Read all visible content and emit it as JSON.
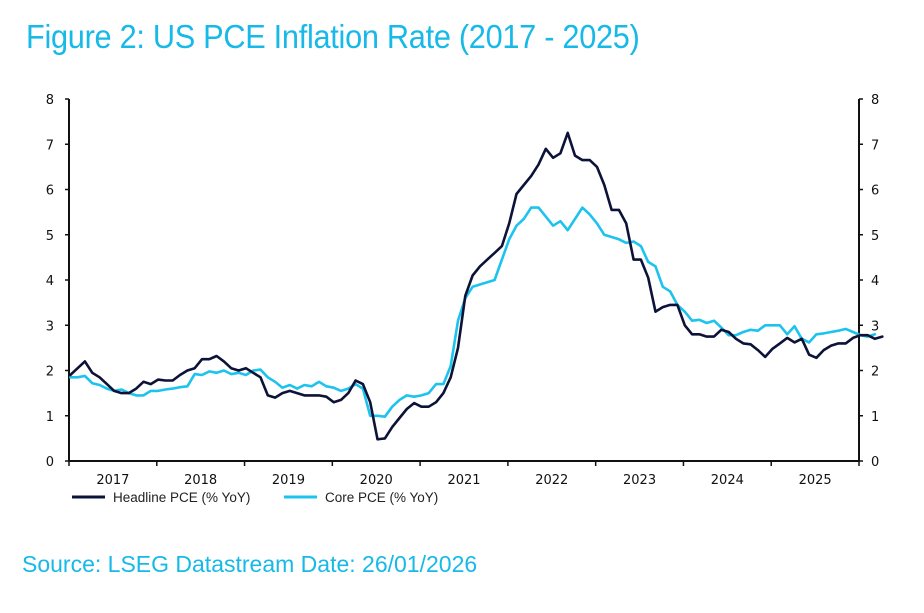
{
  "figure": {
    "title": "Figure 2: US PCE Inflation Rate (2017 - 2025)",
    "source": "Source: LSEG Datastream Date: 26/01/2026"
  },
  "chart_data": {
    "type": "line",
    "title": "Figure 2: US PCE Inflation Rate (2017 - 2025)",
    "xlabel": "",
    "ylabel": "",
    "ylim": [
      0,
      8
    ],
    "yticks": [
      0,
      1,
      2,
      3,
      4,
      5,
      6,
      7,
      8
    ],
    "ytick_labels": [
      "0",
      "1",
      "2",
      "3",
      "4",
      "5",
      "6",
      "7",
      "8"
    ],
    "y_axes": [
      "left",
      "right"
    ],
    "xlim": [
      2017.0,
      2026.0
    ],
    "xtick_labels": [
      "2017",
      "2018",
      "2019",
      "2020",
      "2021",
      "2022",
      "2023",
      "2024",
      "2025"
    ],
    "grid": false,
    "legend_position": "bottom-left",
    "x_start": "2017-01",
    "frequency": "monthly",
    "colors": {
      "headline": "#0d1238",
      "core": "#1cc3ee",
      "axis": "#111111",
      "title": "#16b9e8"
    },
    "series": [
      {
        "name": "Headline PCE (% YoY)",
        "key": "headline",
        "values": [
          1.9,
          2.05,
          2.2,
          1.95,
          1.85,
          1.7,
          1.55,
          1.5,
          1.5,
          1.6,
          1.75,
          1.7,
          1.8,
          1.78,
          1.78,
          1.9,
          2.0,
          2.05,
          2.25,
          2.25,
          2.32,
          2.2,
          2.05,
          2.0,
          2.05,
          1.95,
          1.85,
          1.45,
          1.4,
          1.5,
          1.55,
          1.5,
          1.45,
          1.45,
          1.45,
          1.42,
          1.3,
          1.35,
          1.5,
          1.78,
          1.7,
          1.3,
          0.48,
          0.5,
          0.75,
          0.95,
          1.15,
          1.28,
          1.2,
          1.2,
          1.3,
          1.5,
          1.85,
          2.5,
          3.65,
          4.1,
          4.3,
          4.45,
          4.6,
          4.75,
          5.25,
          5.9,
          6.1,
          6.3,
          6.55,
          6.9,
          6.7,
          6.8,
          7.25,
          6.75,
          6.65,
          6.65,
          6.5,
          6.1,
          5.55,
          5.55,
          5.25,
          4.45,
          4.45,
          4.05,
          3.3,
          3.4,
          3.45,
          3.45,
          3.0,
          2.8,
          2.8,
          2.75,
          2.75,
          2.9,
          2.85,
          2.7,
          2.6,
          2.58,
          2.45,
          2.3,
          2.48,
          2.6,
          2.72,
          2.62,
          2.7,
          2.35,
          2.28,
          2.45,
          2.55,
          2.6,
          2.6,
          2.72,
          2.78,
          2.78,
          2.7,
          2.75
        ]
      },
      {
        "name": "Core PCE (% YoY)",
        "key": "core",
        "values": [
          1.85,
          1.85,
          1.88,
          1.72,
          1.68,
          1.6,
          1.55,
          1.58,
          1.5,
          1.45,
          1.45,
          1.55,
          1.55,
          1.58,
          1.6,
          1.63,
          1.65,
          1.92,
          1.9,
          1.98,
          1.95,
          2.0,
          1.92,
          1.95,
          1.9,
          2.0,
          2.02,
          1.85,
          1.75,
          1.62,
          1.68,
          1.6,
          1.68,
          1.65,
          1.75,
          1.65,
          1.62,
          1.55,
          1.6,
          1.7,
          1.6,
          1.0,
          1.0,
          0.98,
          1.2,
          1.35,
          1.45,
          1.42,
          1.45,
          1.5,
          1.7,
          1.7,
          2.1,
          3.1,
          3.6,
          3.85,
          3.9,
          3.95,
          4.0,
          4.45,
          4.9,
          5.2,
          5.35,
          5.6,
          5.6,
          5.4,
          5.2,
          5.3,
          5.1,
          5.35,
          5.6,
          5.45,
          5.25,
          5.0,
          4.95,
          4.9,
          4.82,
          4.85,
          4.75,
          4.4,
          4.3,
          3.85,
          3.75,
          3.45,
          3.3,
          3.1,
          3.12,
          3.05,
          3.1,
          2.95,
          2.78,
          2.78,
          2.85,
          2.9,
          2.88,
          3.0,
          3.0,
          3.0,
          2.8,
          2.98,
          2.7,
          2.62,
          2.8,
          2.82,
          2.85,
          2.88,
          2.92,
          2.85,
          2.78,
          2.75,
          2.8
        ]
      }
    ]
  }
}
